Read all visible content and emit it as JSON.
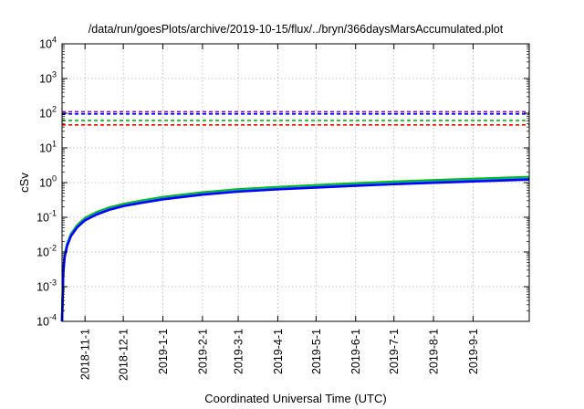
{
  "chart_data": {
    "type": "line",
    "title": "/data/run/goesPlots/archive/2019-10-15/flux/../bryn/366daysMarsAccumulated.plot",
    "xlabel": "Coordinated Universal Time (UTC)",
    "ylabel": "cSv",
    "yscale": "log",
    "ylim": [
      0.0001,
      10000
    ],
    "xlim": [
      "2018-10-14",
      "2019-10-15"
    ],
    "grid": true,
    "legend": "none",
    "x_ticks": [
      "2018-11-1",
      "2018-12-1",
      "2019-1-1",
      "2019-2-1",
      "2019-3-1",
      "2019-4-1",
      "2019-5-1",
      "2019-6-1",
      "2019-7-1",
      "2019-8-1",
      "2019-9-1"
    ],
    "y_ticks": [
      {
        "value": 0.0001,
        "base": "10",
        "exp": "-4"
      },
      {
        "value": 0.001,
        "base": "10",
        "exp": "-3"
      },
      {
        "value": 0.01,
        "base": "10",
        "exp": "-2"
      },
      {
        "value": 0.1,
        "base": "10",
        "exp": "-1"
      },
      {
        "value": 1,
        "base": "10",
        "exp": "0"
      },
      {
        "value": 10,
        "base": "10",
        "exp": "1"
      },
      {
        "value": 100,
        "base": "10",
        "exp": "2"
      },
      {
        "value": 1000,
        "base": "10",
        "exp": "3"
      },
      {
        "value": 10000,
        "base": "10",
        "exp": "4"
      }
    ],
    "reference_lines": [
      {
        "value": 110,
        "color": "#8b00d9",
        "style": "dashed"
      },
      {
        "value": 95,
        "color": "#0000ff",
        "style": "dashed"
      },
      {
        "value": 62,
        "color": "#00bb00",
        "style": "dashed"
      },
      {
        "value": 46,
        "color": "#ff0000",
        "style": "dashed"
      }
    ],
    "series": [
      {
        "color": "#00bb00",
        "x": [
          "2018-10-14",
          "2018-10-15",
          "2018-10-16",
          "2018-10-18",
          "2018-10-21",
          "2018-10-26",
          "2018-11-1",
          "2018-11-10",
          "2018-11-20",
          "2018-12-1",
          "2018-12-15",
          "2019-1-1",
          "2019-2-1",
          "2019-3-1",
          "2019-4-1",
          "2019-5-1",
          "2019-6-1",
          "2019-7-1",
          "2019-8-1",
          "2019-9-1",
          "2019-10-15"
        ],
        "y": [
          0.0001,
          0.003,
          0.008,
          0.017,
          0.033,
          0.06,
          0.095,
          0.14,
          0.19,
          0.24,
          0.3,
          0.38,
          0.52,
          0.64,
          0.74,
          0.84,
          0.95,
          1.06,
          1.17,
          1.28,
          1.45
        ]
      },
      {
        "color": "#00aaaa",
        "x": [
          "2018-10-14",
          "2018-10-15",
          "2018-10-16",
          "2018-10-18",
          "2018-10-21",
          "2018-10-26",
          "2018-11-1",
          "2018-11-10",
          "2018-11-20",
          "2018-12-1",
          "2018-12-15",
          "2019-1-1",
          "2019-2-1",
          "2019-3-1",
          "2019-4-1",
          "2019-5-1",
          "2019-6-1",
          "2019-7-1",
          "2019-8-1",
          "2019-9-1",
          "2019-10-15"
        ],
        "y": [
          0.0001,
          0.0028,
          0.0075,
          0.016,
          0.031,
          0.056,
          0.088,
          0.13,
          0.175,
          0.22,
          0.28,
          0.35,
          0.48,
          0.59,
          0.68,
          0.77,
          0.87,
          0.97,
          1.07,
          1.17,
          1.32
        ]
      },
      {
        "color": "#0000ff",
        "x": [
          "2018-10-14",
          "2018-10-15",
          "2018-10-16",
          "2018-10-18",
          "2018-10-21",
          "2018-10-26",
          "2018-11-1",
          "2018-11-10",
          "2018-11-20",
          "2018-12-1",
          "2018-12-15",
          "2019-1-1",
          "2019-2-1",
          "2019-3-1",
          "2019-4-1",
          "2019-5-1",
          "2019-6-1",
          "2019-7-1",
          "2019-8-1",
          "2019-9-1",
          "2019-10-15"
        ],
        "y": [
          0.0001,
          0.0026,
          0.007,
          0.015,
          0.029,
          0.052,
          0.082,
          0.12,
          0.165,
          0.21,
          0.26,
          0.33,
          0.45,
          0.55,
          0.64,
          0.72,
          0.81,
          0.9,
          0.99,
          1.08,
          1.22
        ]
      }
    ]
  }
}
